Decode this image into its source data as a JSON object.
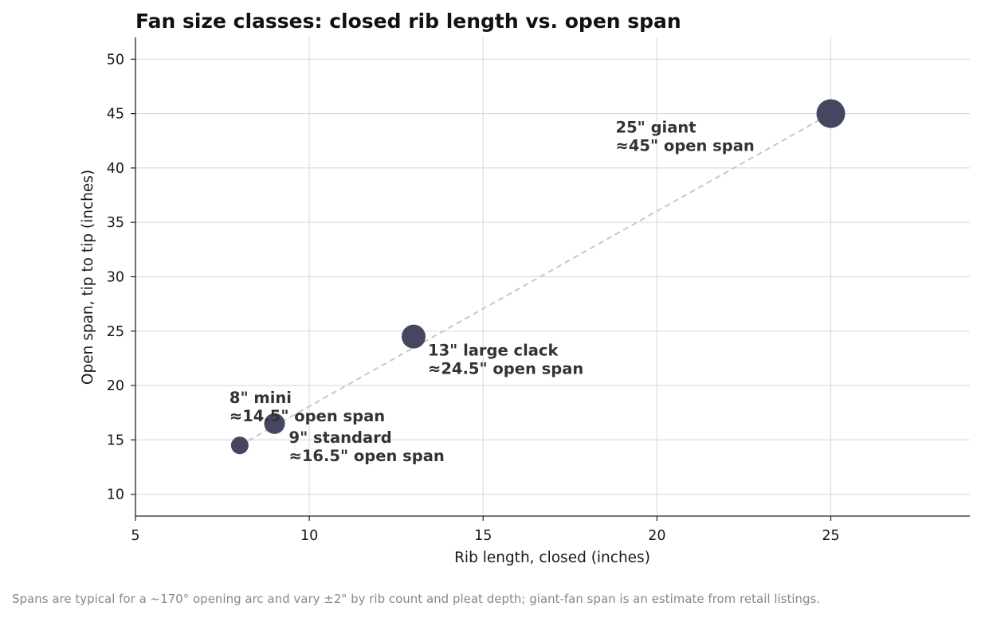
{
  "chart_data": {
    "type": "scatter",
    "title": "Fan size classes: closed rib length vs. open span",
    "xlabel": "Rib length, closed (inches)",
    "ylabel": "Open span, tip to tip (inches)",
    "xlim": [
      5,
      29
    ],
    "ylim": [
      8,
      52
    ],
    "xticks": [
      5,
      10,
      15,
      20,
      25
    ],
    "yticks": [
      10,
      15,
      20,
      25,
      30,
      35,
      40,
      45,
      50
    ],
    "grid": true,
    "points": [
      {
        "x": 8,
        "y": 14.5,
        "label": [
          "8\" mini",
          "≈14.5\" open span"
        ]
      },
      {
        "x": 9,
        "y": 16.5,
        "label": [
          "9\" standard",
          "≈16.5\" open span"
        ]
      },
      {
        "x": 13,
        "y": 24.5,
        "label": [
          "13\" large clack",
          "≈24.5\" open span"
        ]
      },
      {
        "x": 25,
        "y": 45,
        "label": [
          "25\" giant",
          "≈45\" open span"
        ]
      }
    ],
    "trend_line": {
      "style": "dashed",
      "color": "#c8c8c8",
      "from": [
        8,
        14.5
      ],
      "to": [
        25,
        45
      ]
    },
    "marker_color": "#44475f",
    "footnote": "Spans are typical for a ~170° opening arc and vary ±2\" by rib count and pleat depth; giant-fan span is an estimate from retail listings."
  }
}
